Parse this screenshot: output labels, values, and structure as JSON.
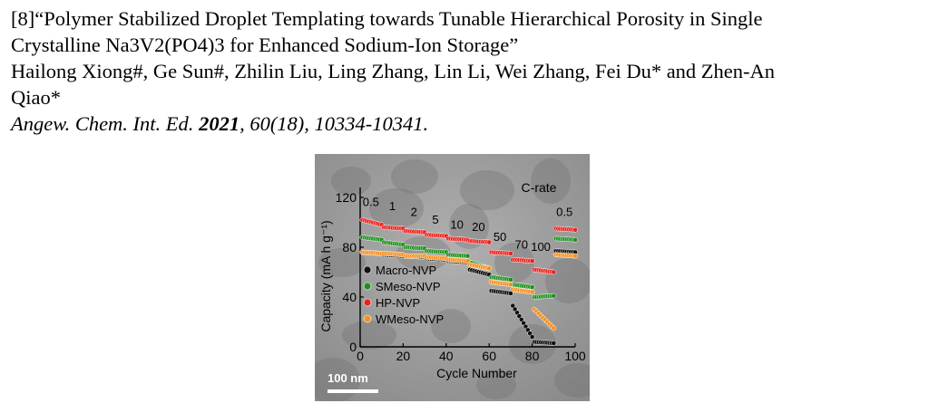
{
  "reference": {
    "line1": "[8]“Polymer Stabilized Droplet Templating towards Tunable Hierarchical Porosity in Single",
    "line2": "Crystalline Na3V2(PO4)3 for Enhanced Sodium-Ion Storage”",
    "line3": "Hailong Xiong#, Ge Sun#, Zhilin Liu, Ling Zhang, Lin Li, Wei Zhang, Fei Du* and Zhen-An",
    "line4": "Qiao*",
    "journal_prefix": "Angew. Chem. Int. Ed. ",
    "journal_year": "2021",
    "journal_suffix": ", 60(18), 10334-10341."
  },
  "figure": {
    "scale_bar_label": "100 nm"
  },
  "chart_data": {
    "type": "scatter",
    "title": "C-rate",
    "xlabel": "Cycle Number",
    "ylabel": "Capacity (mA h g⁻¹)",
    "xlim": [
      0,
      100
    ],
    "ylim": [
      0,
      128
    ],
    "xticks": [
      "0",
      "20",
      "40",
      "60",
      "80",
      "100"
    ],
    "yticks": [
      "0",
      "40",
      "80",
      "120"
    ],
    "rate_labels": [
      {
        "text": "0.5",
        "x": 5,
        "y": 113
      },
      {
        "text": "1",
        "x": 15,
        "y": 110
      },
      {
        "text": "2",
        "x": 25,
        "y": 105
      },
      {
        "text": "5",
        "x": 35,
        "y": 99
      },
      {
        "text": "10",
        "x": 45,
        "y": 95
      },
      {
        "text": "20",
        "x": 55,
        "y": 93
      },
      {
        "text": "50",
        "x": 65,
        "y": 85
      },
      {
        "text": "70",
        "x": 75,
        "y": 79
      },
      {
        "text": "100",
        "x": 84,
        "y": 77
      },
      {
        "text": "0.5",
        "x": 95,
        "y": 105
      }
    ],
    "legend_position": "lower-left",
    "series": [
      {
        "name": "Macro-NVP",
        "color": "#111111",
        "segments": [
          {
            "x": [
              1,
              10
            ],
            "y": [
              76,
              75
            ]
          },
          {
            "x": [
              11,
              20
            ],
            "y": [
              74,
              73
            ]
          },
          {
            "x": [
              21,
              30
            ],
            "y": [
              73,
              72
            ]
          },
          {
            "x": [
              31,
              40
            ],
            "y": [
              71,
              70
            ]
          },
          {
            "x": [
              41,
              50
            ],
            "y": [
              69,
              68
            ]
          },
          {
            "x": [
              51,
              60
            ],
            "y": [
              62,
              58
            ]
          },
          {
            "x": [
              61,
              70
            ],
            "y": [
              45,
              43
            ]
          },
          {
            "x": [
              71,
              80
            ],
            "y": [
              33,
              8
            ]
          },
          {
            "x": [
              81,
              90
            ],
            "y": [
              4,
              3
            ]
          },
          {
            "x": [
              91,
              100
            ],
            "y": [
              77,
              76
            ]
          }
        ]
      },
      {
        "name": "SMeso-NVP",
        "color": "#1f8f1f",
        "segments": [
          {
            "x": [
              1,
              10
            ],
            "y": [
              88,
              86
            ]
          },
          {
            "x": [
              11,
              20
            ],
            "y": [
              84,
              82
            ]
          },
          {
            "x": [
              21,
              30
            ],
            "y": [
              80,
              79
            ]
          },
          {
            "x": [
              31,
              40
            ],
            "y": [
              77,
              76
            ]
          },
          {
            "x": [
              41,
              50
            ],
            "y": [
              74,
              73
            ]
          },
          {
            "x": [
              51,
              60
            ],
            "y": [
              68,
              63
            ]
          },
          {
            "x": [
              61,
              70
            ],
            "y": [
              56,
              54
            ]
          },
          {
            "x": [
              71,
              80
            ],
            "y": [
              50,
              48
            ]
          },
          {
            "x": [
              81,
              90
            ],
            "y": [
              40,
              41
            ]
          },
          {
            "x": [
              91,
              100
            ],
            "y": [
              87,
              86
            ]
          }
        ]
      },
      {
        "name": "HP-NVP",
        "color": "#e8231f",
        "segments": [
          {
            "x": [
              1,
              10
            ],
            "y": [
              102,
              98
            ]
          },
          {
            "x": [
              11,
              20
            ],
            "y": [
              96,
              95
            ]
          },
          {
            "x": [
              21,
              30
            ],
            "y": [
              93,
              92
            ]
          },
          {
            "x": [
              31,
              40
            ],
            "y": [
              90,
              89
            ]
          },
          {
            "x": [
              41,
              50
            ],
            "y": [
              87,
              86
            ]
          },
          {
            "x": [
              51,
              60
            ],
            "y": [
              85,
              84
            ]
          },
          {
            "x": [
              61,
              70
            ],
            "y": [
              76,
              75
            ]
          },
          {
            "x": [
              71,
              80
            ],
            "y": [
              70,
              69
            ]
          },
          {
            "x": [
              81,
              90
            ],
            "y": [
              62,
              60
            ]
          },
          {
            "x": [
              91,
              100
            ],
            "y": [
              95,
              94
            ]
          }
        ]
      },
      {
        "name": "WMeso-NVP",
        "color": "#f5901e",
        "segments": [
          {
            "x": [
              1,
              10
            ],
            "y": [
              76,
              75
            ]
          },
          {
            "x": [
              11,
              20
            ],
            "y": [
              75,
              74
            ]
          },
          {
            "x": [
              21,
              30
            ],
            "y": [
              73,
              73
            ]
          },
          {
            "x": [
              31,
              40
            ],
            "y": [
              72,
              71
            ]
          },
          {
            "x": [
              41,
              50
            ],
            "y": [
              70,
              69
            ]
          },
          {
            "x": [
              51,
              60
            ],
            "y": [
              66,
              63
            ]
          },
          {
            "x": [
              61,
              70
            ],
            "y": [
              52,
              50
            ]
          },
          {
            "x": [
              71,
              80
            ],
            "y": [
              46,
              44
            ]
          },
          {
            "x": [
              81,
              90
            ],
            "y": [
              30,
              15
            ]
          },
          {
            "x": [
              91,
              100
            ],
            "y": [
              74,
              73
            ]
          }
        ]
      }
    ]
  }
}
